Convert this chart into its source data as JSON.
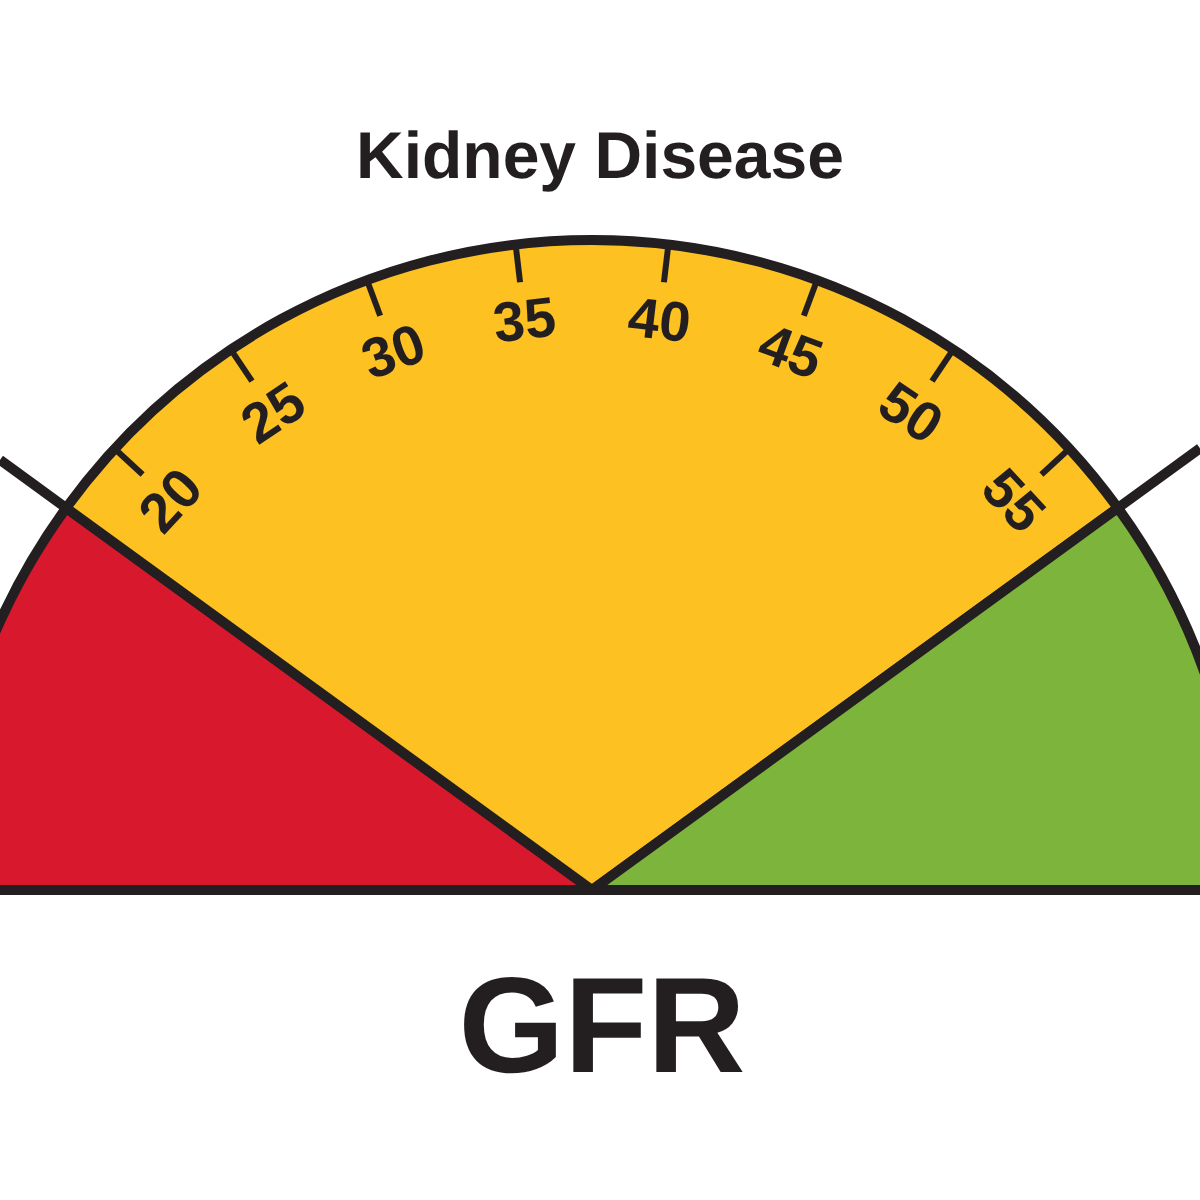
{
  "chart_data": {
    "type": "pie",
    "title": "Kidney Disease",
    "xlabel": "GFR",
    "categories": [
      null,
      null,
      null
    ],
    "values": [
      20,
      60,
      20
    ],
    "colors": [
      "#d8192d",
      "#fdc122",
      "#7db43b"
    ],
    "annotations": [
      "20",
      "25",
      "30",
      "35",
      "40",
      "45",
      "50",
      "55"
    ]
  }
}
